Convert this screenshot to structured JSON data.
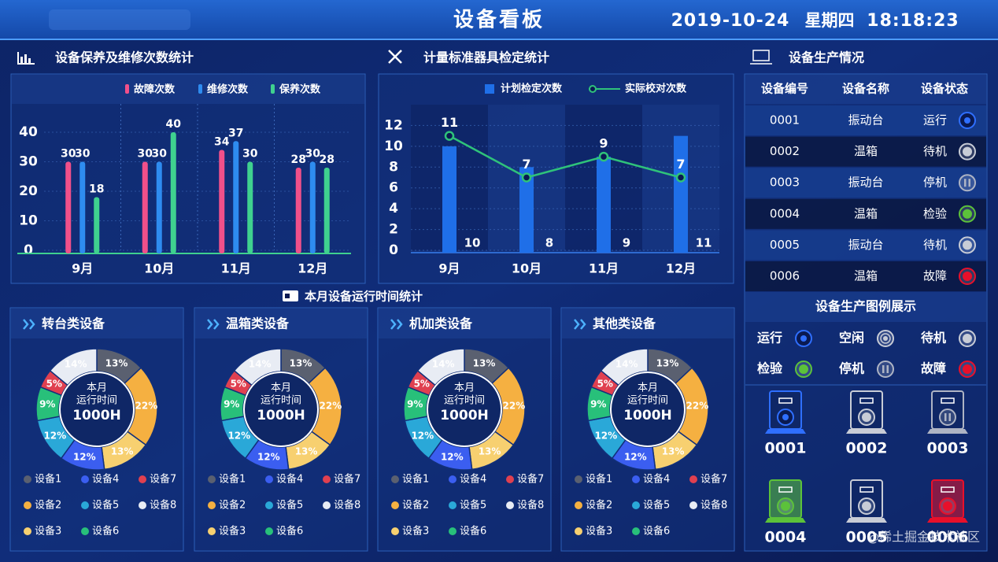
{
  "header": {
    "title": "设备看板",
    "date": "2019-10-24",
    "weekday": "星期四",
    "time": "18:18:23"
  },
  "chart_data": [
    {
      "type": "bar",
      "title": "设备保养及维修次数统计",
      "categories": [
        "9月",
        "10月",
        "11月",
        "12月"
      ],
      "series": [
        {
          "name": "故障次数",
          "color": "#f0508a",
          "values": [
            30,
            30,
            34,
            28
          ]
        },
        {
          "name": "维修次数",
          "color": "#2e8cf0",
          "values": [
            30,
            30,
            37,
            30
          ]
        },
        {
          "name": "保养次数",
          "color": "#3fd18f",
          "values": [
            18,
            40,
            30,
            28
          ]
        }
      ],
      "ylim": [
        0,
        48
      ],
      "yticks": [
        0,
        10,
        20,
        30,
        40
      ],
      "grid": true
    },
    {
      "type": "bar",
      "title": "计量标准器具检定统计",
      "categories": [
        "9月",
        "10月",
        "11月",
        "12月"
      ],
      "series": [
        {
          "name": "计划检定次数",
          "color": "#1f6fe8",
          "values": [
            10,
            8,
            9,
            11
          ]
        },
        {
          "name": "实际校对次数",
          "color": "#2fc27a",
          "type": "line",
          "values": [
            11,
            7,
            9,
            7
          ]
        }
      ],
      "ylim": [
        0,
        14
      ],
      "yticks": [
        0,
        2,
        4,
        6,
        8,
        10,
        12
      ],
      "grid": true
    },
    {
      "type": "pie",
      "title": "转台类设备",
      "center_labels": [
        "本月",
        "运行时间",
        "1000H"
      ],
      "categories": [
        "设备1",
        "设备2",
        "设备3",
        "设备4",
        "设备5",
        "设备6",
        "设备7",
        "设备8"
      ],
      "values": [
        13,
        22,
        13,
        12,
        12,
        9,
        5,
        14
      ],
      "value_labels": [
        "13%",
        "22%",
        "13%",
        "12%",
        "12%",
        "9%",
        "5%",
        "14%"
      ],
      "colors": [
        "#5a6070",
        "#f5b041",
        "#f7d070",
        "#3b5ef0",
        "#2aa8d8",
        "#28c07a",
        "#e04050",
        "#e8ecf4"
      ]
    },
    {
      "type": "pie",
      "title": "温箱类设备",
      "center_labels": [
        "本月",
        "运行时间",
        "1000H"
      ],
      "categories": [
        "设备1",
        "设备2",
        "设备3",
        "设备4",
        "设备5",
        "设备6",
        "设备7",
        "设备8"
      ],
      "values": [
        13,
        22,
        13,
        12,
        12,
        9,
        5,
        14
      ],
      "value_labels": [
        "13%",
        "22%",
        "13%",
        "12%",
        "12%",
        "9%",
        "5%",
        "14%"
      ],
      "colors": [
        "#5a6070",
        "#f5b041",
        "#f7d070",
        "#3b5ef0",
        "#2aa8d8",
        "#28c07a",
        "#e04050",
        "#e8ecf4"
      ]
    },
    {
      "type": "pie",
      "title": "机加类设备",
      "center_labels": [
        "本月",
        "运行时间",
        "1000H"
      ],
      "categories": [
        "设备1",
        "设备2",
        "设备3",
        "设备4",
        "设备5",
        "设备6",
        "设备7",
        "设备8"
      ],
      "values": [
        13,
        22,
        13,
        12,
        12,
        9,
        5,
        14
      ],
      "value_labels": [
        "13%",
        "22%",
        "13%",
        "12%",
        "12%",
        "9%",
        "5%",
        "14%"
      ],
      "colors": [
        "#5a6070",
        "#f5b041",
        "#f7d070",
        "#3b5ef0",
        "#2aa8d8",
        "#28c07a",
        "#e04050",
        "#e8ecf4"
      ]
    },
    {
      "type": "pie",
      "title": "其他类设备",
      "center_labels": [
        "本月",
        "运行时间",
        "1000H"
      ],
      "categories": [
        "设备1",
        "设备2",
        "设备3",
        "设备4",
        "设备5",
        "设备6",
        "设备7",
        "设备8"
      ],
      "values": [
        13,
        22,
        13,
        12,
        12,
        9,
        5,
        14
      ],
      "value_labels": [
        "13%",
        "22%",
        "13%",
        "12%",
        "12%",
        "9%",
        "5%",
        "14%"
      ],
      "colors": [
        "#5a6070",
        "#f5b041",
        "#f7d070",
        "#3b5ef0",
        "#2aa8d8",
        "#28c07a",
        "#e04050",
        "#e8ecf4"
      ]
    }
  ],
  "section_title": "本月设备运行时间统计",
  "table": {
    "title": "设备生产情况",
    "columns": [
      "设备编号",
      "设备名称",
      "设备状态"
    ],
    "rows": [
      [
        "0001",
        "振动台",
        "运行"
      ],
      [
        "0002",
        "温箱",
        "待机"
      ],
      [
        "0003",
        "振动台",
        "停机"
      ],
      [
        "0004",
        "温箱",
        "检验"
      ],
      [
        "0005",
        "振动台",
        "待机"
      ],
      [
        "0006",
        "温箱",
        "故障"
      ]
    ]
  },
  "legend_panel": {
    "title": "设备生产图例展示",
    "items": [
      {
        "label": "运行",
        "color": "#2f6fff"
      },
      {
        "label": "空闲",
        "color": "#c8ccd6"
      },
      {
        "label": "待机",
        "color": "#c8ccd6"
      },
      {
        "label": "检验",
        "color": "#5cc23a"
      },
      {
        "label": "停机",
        "color": "#aeb4c4"
      },
      {
        "label": "故障",
        "color": "#e8102a"
      }
    ]
  },
  "watermark": "@稀土掘金技术社区"
}
